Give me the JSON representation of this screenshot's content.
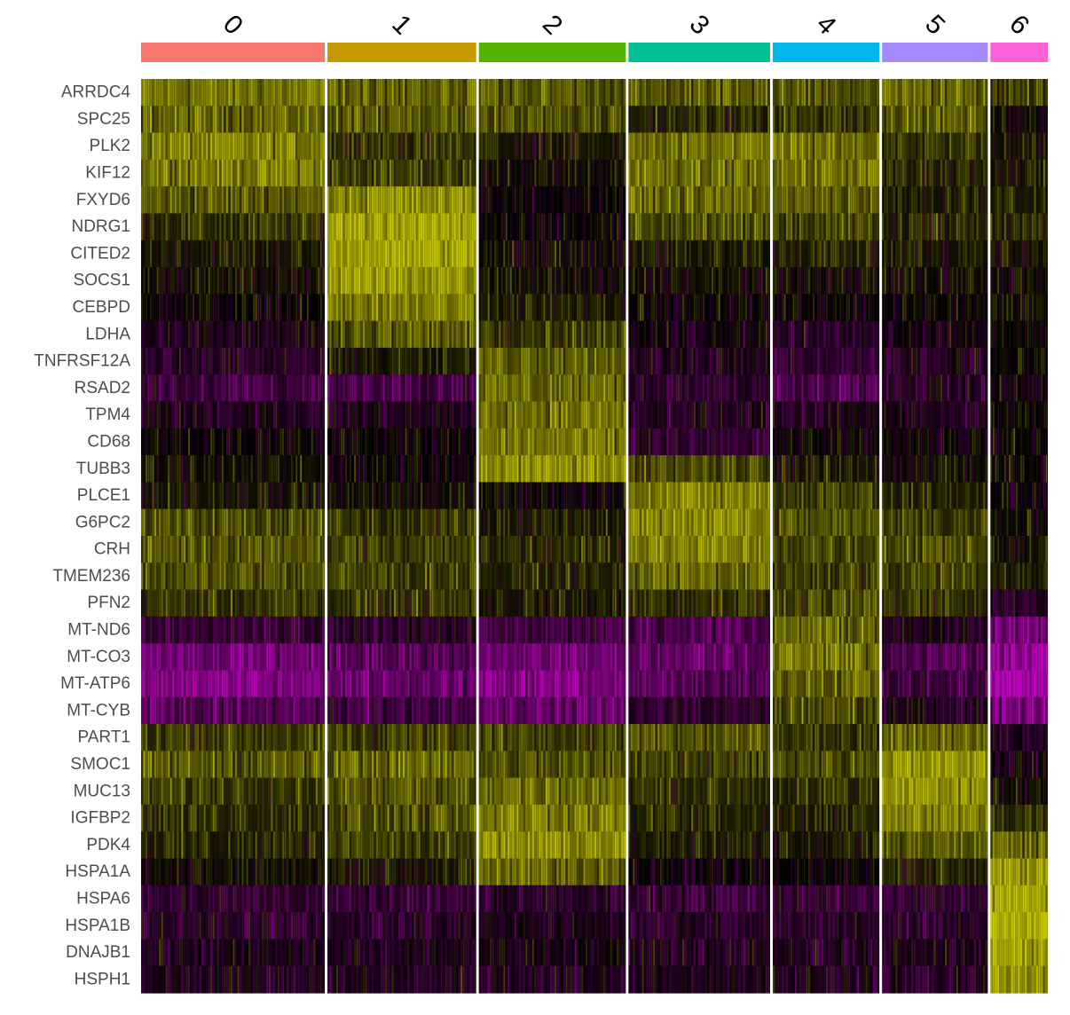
{
  "chart_data": {
    "type": "heatmap",
    "title": "",
    "xlabel": "",
    "ylabel": "",
    "clusters": [
      {
        "label": "0",
        "color": "#F8766D",
        "cell_fraction": 0.205
      },
      {
        "label": "1",
        "color": "#C49A00",
        "cell_fraction": 0.166
      },
      {
        "label": "2",
        "color": "#53B400",
        "cell_fraction": 0.164
      },
      {
        "label": "3",
        "color": "#00C094",
        "cell_fraction": 0.158
      },
      {
        "label": "4",
        "color": "#00B6EB",
        "cell_fraction": 0.119
      },
      {
        "label": "5",
        "color": "#A58AFF",
        "cell_fraction": 0.118
      },
      {
        "label": "6",
        "color": "#FB61D7",
        "cell_fraction": 0.064
      }
    ],
    "genes": [
      "ARRDC4",
      "SPC25",
      "PLK2",
      "KIF12",
      "FXYD6",
      "NDRG1",
      "CITED2",
      "SOCS1",
      "CEBPD",
      "LDHA",
      "TNFRSF12A",
      "RSAD2",
      "TPM4",
      "CD68",
      "TUBB3",
      "PLCE1",
      "G6PC2",
      "CRH",
      "TMEM236",
      "PFN2",
      "MT-ND6",
      "MT-CO3",
      "MT-ATP6",
      "MT-CYB",
      "PART1",
      "SMOC1",
      "MUC13",
      "IGFBP2",
      "PDK4",
      "HSPA1A",
      "HSPA6",
      "HSPA1B",
      "DNAJB1",
      "HSPH1"
    ],
    "expression_scale": {
      "low": "#FF00FF",
      "mid": "#000000",
      "high": "#FFFF00",
      "range": [
        -2.5,
        2.5
      ]
    },
    "mean_scaled_expression": [
      [
        0.9,
        0.8,
        0.7,
        0.7,
        0.6,
        0.8,
        0.5
      ],
      [
        0.8,
        0.7,
        0.6,
        0.3,
        0.4,
        0.7,
        0.1
      ],
      [
        1.0,
        0.4,
        0.2,
        0.9,
        0.9,
        0.4,
        0.2
      ],
      [
        1.0,
        0.5,
        0.1,
        0.9,
        0.9,
        0.3,
        0.2
      ],
      [
        0.7,
        1.1,
        0.0,
        0.8,
        0.7,
        0.2,
        0.3
      ],
      [
        0.4,
        1.3,
        0.0,
        0.6,
        0.5,
        0.3,
        0.3
      ],
      [
        0.2,
        1.3,
        0.1,
        0.2,
        0.3,
        0.2,
        0.2
      ],
      [
        0.1,
        1.2,
        0.1,
        0.1,
        0.1,
        0.1,
        0.1
      ],
      [
        0.0,
        1.0,
        0.2,
        0.0,
        0.0,
        0.0,
        0.1
      ],
      [
        -0.2,
        0.7,
        0.5,
        -0.1,
        -0.3,
        -0.1,
        0.0
      ],
      [
        -0.3,
        0.2,
        0.8,
        -0.2,
        -0.4,
        -0.2,
        0.0
      ],
      [
        -0.5,
        -0.5,
        0.8,
        -0.3,
        -0.6,
        -0.3,
        -0.1
      ],
      [
        -0.2,
        -0.2,
        0.9,
        -0.2,
        -0.2,
        -0.2,
        0.0
      ],
      [
        0.0,
        0.0,
        0.9,
        -0.4,
        0.0,
        0.0,
        0.0
      ],
      [
        0.1,
        0.0,
        1.1,
        0.6,
        0.2,
        0.1,
        0.0
      ],
      [
        0.2,
        0.1,
        0.0,
        1.0,
        0.5,
        0.3,
        0.0
      ],
      [
        0.6,
        0.4,
        0.2,
        1.1,
        0.6,
        0.5,
        0.1
      ],
      [
        0.7,
        0.5,
        0.3,
        1.0,
        0.6,
        0.6,
        0.1
      ],
      [
        0.6,
        0.5,
        0.3,
        0.8,
        0.5,
        0.5,
        0.2
      ],
      [
        0.4,
        0.4,
        0.2,
        0.4,
        0.6,
        0.4,
        -0.3
      ],
      [
        -0.4,
        -0.3,
        -0.5,
        -0.6,
        0.8,
        -0.2,
        -0.9
      ],
      [
        -0.9,
        -0.7,
        -0.9,
        -0.8,
        0.9,
        -0.6,
        -1.2
      ],
      [
        -1.0,
        -0.8,
        -1.0,
        -0.6,
        0.8,
        -0.5,
        -1.3
      ],
      [
        -0.7,
        -0.5,
        -0.8,
        -0.3,
        0.6,
        -0.2,
        -0.9
      ],
      [
        0.5,
        0.5,
        0.5,
        0.7,
        0.4,
        0.8,
        -0.2
      ],
      [
        0.7,
        0.8,
        0.6,
        0.5,
        0.6,
        1.2,
        -0.1
      ],
      [
        0.5,
        0.7,
        0.9,
        0.4,
        0.4,
        1.2,
        0.1
      ],
      [
        0.4,
        0.6,
        1.0,
        0.3,
        0.3,
        1.0,
        0.4
      ],
      [
        0.3,
        0.5,
        1.1,
        0.2,
        0.2,
        0.7,
        0.8
      ],
      [
        0.1,
        0.2,
        0.8,
        0.0,
        0.0,
        0.3,
        1.2
      ],
      [
        -0.4,
        -0.4,
        -0.3,
        -0.4,
        -0.4,
        -0.4,
        1.3
      ],
      [
        -0.3,
        -0.3,
        -0.2,
        -0.3,
        -0.3,
        -0.3,
        1.4
      ],
      [
        -0.2,
        -0.2,
        -0.1,
        -0.2,
        -0.2,
        -0.2,
        1.3
      ],
      [
        -0.2,
        -0.2,
        -0.2,
        -0.2,
        -0.2,
        -0.2,
        1.2
      ]
    ]
  }
}
